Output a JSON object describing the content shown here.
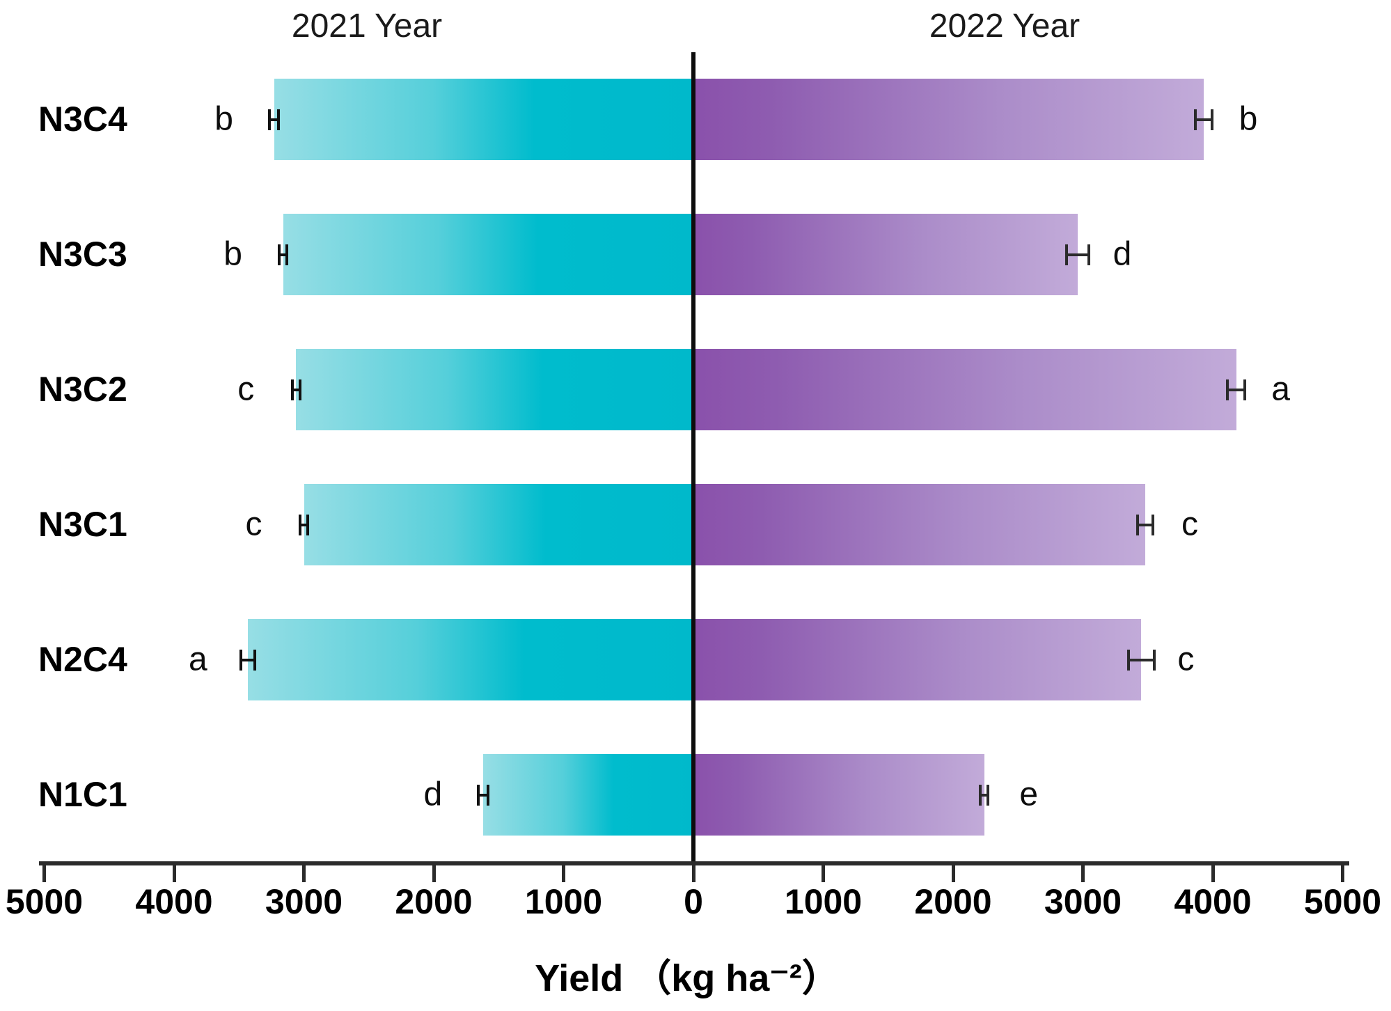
{
  "chart_data": {
    "type": "bar",
    "subtype": "diverging-butterfly-horizontal",
    "title_left": "2021 Year",
    "title_right": "2022 Year",
    "xlabel": "Yield （kg ha⁻²）",
    "categories": [
      "N3C4",
      "N3C3",
      "N3C2",
      "N3C1",
      "N2C4",
      "N1C1"
    ],
    "series": [
      {
        "name": "2021 Year",
        "direction": "left",
        "color_tip": "#97dee5",
        "color_base": "#00bccd",
        "values": [
          3230,
          3160,
          3060,
          3000,
          3430,
          1620
        ],
        "errors": [
          45,
          40,
          40,
          40,
          65,
          50
        ],
        "sig_letters": [
          "b",
          "b",
          "c",
          "c",
          "a",
          "d"
        ]
      },
      {
        "name": "2022 Year",
        "direction": "right",
        "color_tip": "#c2abd9",
        "color_base": "#8a51ab",
        "values": [
          3930,
          2960,
          4180,
          3480,
          3450,
          2240
        ],
        "errors": [
          75,
          95,
          80,
          70,
          110,
          40
        ],
        "sig_letters": [
          "b",
          "d",
          "a",
          "c",
          "c",
          "e"
        ]
      }
    ],
    "axis": {
      "tick_labels": [
        "5000",
        "4000",
        "3000",
        "2000",
        "1000",
        "0",
        "1000",
        "2000",
        "3000",
        "4000",
        "5000"
      ],
      "xlim_left": 5000,
      "xlim_right": 5000,
      "grid": false,
      "legend": "none"
    }
  }
}
